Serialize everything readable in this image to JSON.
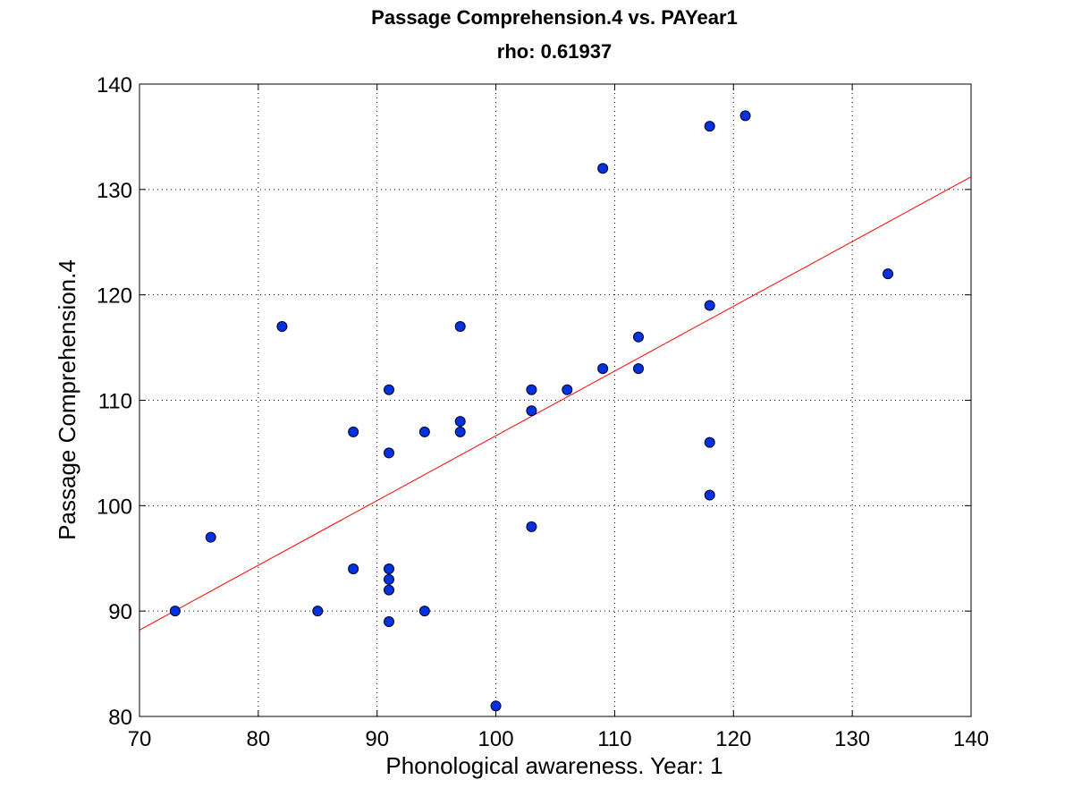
{
  "chart_data": {
    "type": "scatter",
    "title": "Passage Comprehension.4 vs. PAYear1",
    "subtitle": "rho: 0.61937",
    "xlabel": "Phonological awareness. Year: 1",
    "ylabel": "Passage Comprehension.4",
    "xlim": [
      70,
      140
    ],
    "ylim": [
      80,
      140
    ],
    "xticks": [
      70,
      80,
      90,
      100,
      110,
      120,
      130,
      140
    ],
    "yticks": [
      80,
      90,
      100,
      110,
      120,
      130,
      140
    ],
    "grid": true,
    "grid_style": "dotted",
    "point_color": "#0033dd",
    "point_edge_color": "#000033",
    "fit_line_color": "#ff0000",
    "points": [
      {
        "x": 73,
        "y": 90
      },
      {
        "x": 76,
        "y": 97
      },
      {
        "x": 82,
        "y": 117
      },
      {
        "x": 85,
        "y": 90
      },
      {
        "x": 88,
        "y": 107
      },
      {
        "x": 88,
        "y": 94
      },
      {
        "x": 91,
        "y": 111
      },
      {
        "x": 91,
        "y": 105
      },
      {
        "x": 91,
        "y": 94
      },
      {
        "x": 91,
        "y": 93
      },
      {
        "x": 91,
        "y": 92
      },
      {
        "x": 91,
        "y": 89
      },
      {
        "x": 94,
        "y": 107
      },
      {
        "x": 94,
        "y": 90
      },
      {
        "x": 97,
        "y": 117
      },
      {
        "x": 97,
        "y": 108
      },
      {
        "x": 97,
        "y": 107
      },
      {
        "x": 100,
        "y": 81
      },
      {
        "x": 103,
        "y": 111
      },
      {
        "x": 103,
        "y": 109
      },
      {
        "x": 103,
        "y": 98
      },
      {
        "x": 106,
        "y": 111
      },
      {
        "x": 109,
        "y": 132
      },
      {
        "x": 109,
        "y": 113
      },
      {
        "x": 112,
        "y": 116
      },
      {
        "x": 112,
        "y": 113
      },
      {
        "x": 118,
        "y": 136
      },
      {
        "x": 118,
        "y": 119
      },
      {
        "x": 118,
        "y": 106
      },
      {
        "x": 118,
        "y": 101
      },
      {
        "x": 121,
        "y": 137
      },
      {
        "x": 133,
        "y": 122
      }
    ],
    "fit_line": {
      "x": [
        70,
        140
      ],
      "y": [
        88.2,
        131.2
      ]
    }
  }
}
